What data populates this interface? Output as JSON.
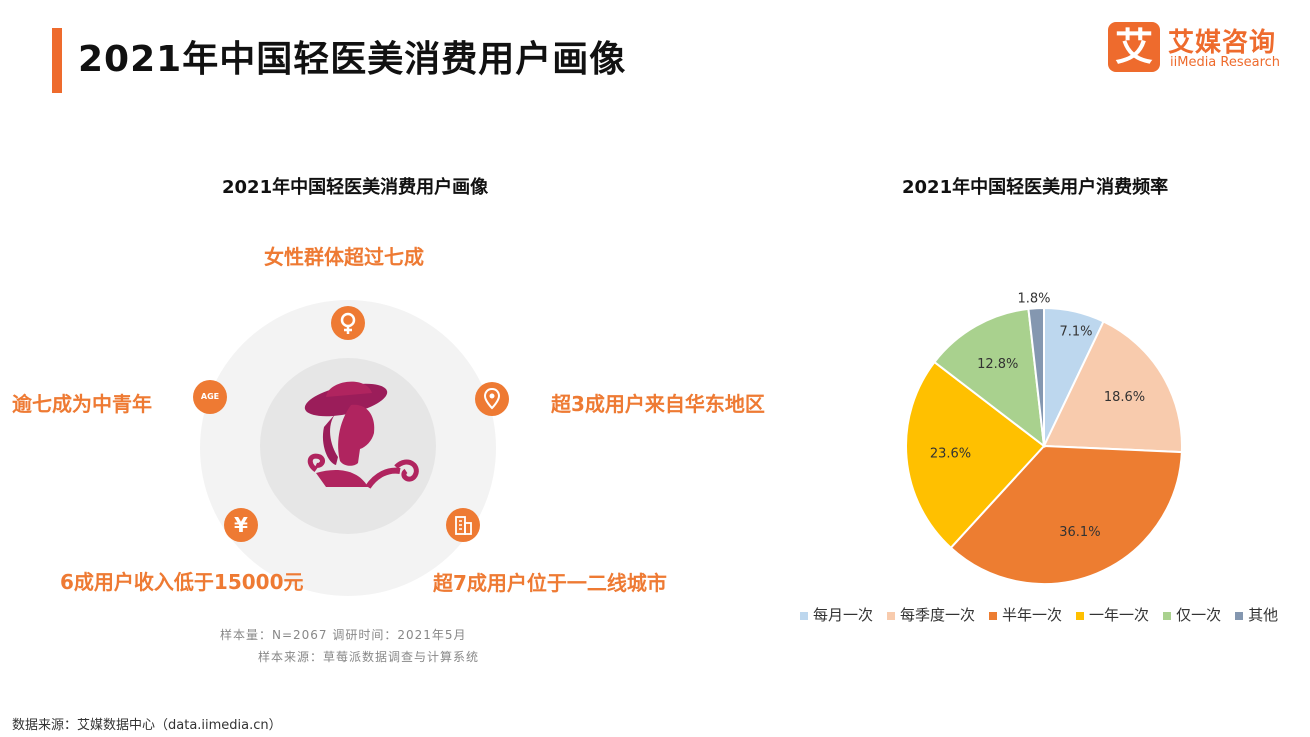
{
  "header": {
    "title": "2021年中国轻医美消费用户画像"
  },
  "logo": {
    "mark": "艾",
    "cn": "艾媒咨询",
    "en": "iiMedia Research"
  },
  "left_panel": {
    "title": "2021年中国轻医美消费用户画像",
    "labels": {
      "female": "女性群体超过七成",
      "age": "逾七成为中青年",
      "region": "超3成用户来自华东地区",
      "income": "6成用户收入低于15000元",
      "city": "超7成用户位于一二线城市"
    },
    "icons": {
      "female": "female-symbol-icon",
      "age": "age-icon",
      "region": "location-pin-icon",
      "income": "yuan-icon",
      "city": "building-icon"
    },
    "icon_text": {
      "age": "AGE",
      "yuan": "¥"
    },
    "note_line1": "样本量：N=2067     调研时间：2021年5月",
    "note_line2": "样本来源：草莓派数据调查与计算系统"
  },
  "footer": {
    "source": "数据来源：艾媒数据中心（data.iimedia.cn）"
  },
  "colors": {
    "accent": "#ee6b2d",
    "orange_text": "#ee7a33"
  },
  "chart_data": {
    "type": "pie",
    "title": "2021年中国轻医美用户消费频率",
    "categories": [
      "每月一次",
      "每季度一次",
      "半年一次",
      "一年一次",
      "仅一次",
      "其他"
    ],
    "values": [
      7.1,
      18.6,
      36.1,
      23.6,
      12.8,
      1.8
    ],
    "labels": [
      "7.1%",
      "18.6%",
      "36.1%",
      "23.6%",
      "12.8%",
      "1.8%"
    ],
    "colors": [
      "#bdd7ee",
      "#f8cbad",
      "#ed7d31",
      "#ffc000",
      "#a9d18e",
      "#8497b0"
    ],
    "legend_position": "bottom"
  }
}
